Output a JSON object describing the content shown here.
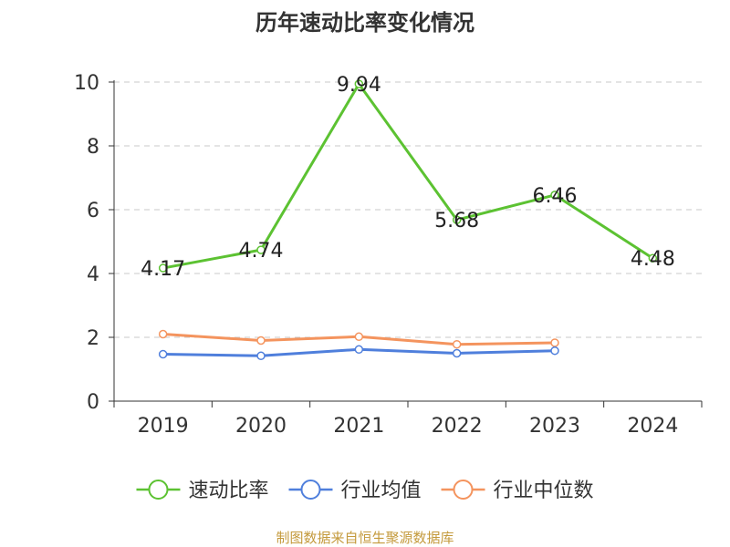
{
  "chart_data": {
    "type": "line",
    "title": "历年速动比率变化情况",
    "categories": [
      "2019",
      "2020",
      "2021",
      "2022",
      "2023",
      "2024"
    ],
    "ylim": [
      0,
      10
    ],
    "yticks": [
      "0",
      "2",
      "4",
      "6",
      "8",
      "10"
    ],
    "grid": "horizontal dashed",
    "legend_position": "bottom",
    "series": [
      {
        "name": "速动比率",
        "color": "#5cc232",
        "values": [
          4.17,
          4.74,
          9.94,
          5.68,
          6.46,
          4.48
        ],
        "labels": [
          "4.17",
          "4.74",
          "9.94",
          "5.68",
          "6.46",
          "4.48"
        ]
      },
      {
        "name": "行业均值",
        "color": "#4f7fdc",
        "values": [
          1.47,
          1.42,
          1.62,
          1.5,
          1.58,
          null
        ]
      },
      {
        "name": "行业中位数",
        "color": "#f4945e",
        "values": [
          2.1,
          1.9,
          2.02,
          1.78,
          1.83,
          null
        ]
      }
    ]
  },
  "source": "制图数据来自恒生聚源数据库"
}
